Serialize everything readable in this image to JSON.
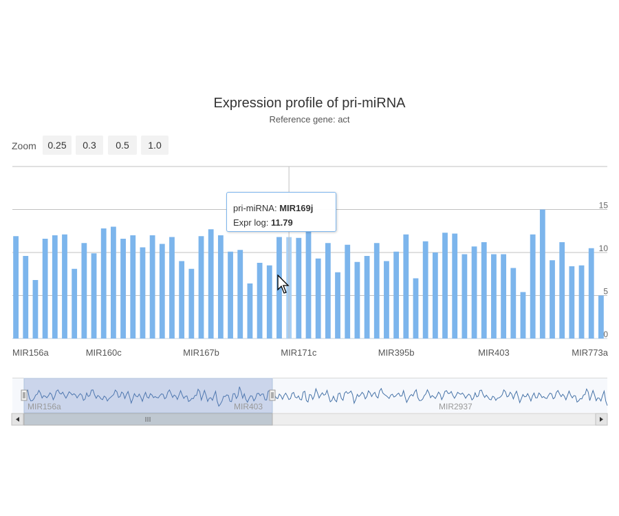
{
  "title": "Expression profile of pri-miRNA",
  "subtitle": "Reference gene: act",
  "zoom": {
    "label": "Zoom",
    "buttons": [
      "0.25",
      "0.3",
      "0.5",
      "1.0"
    ]
  },
  "tooltip": {
    "name_label": "pri-miRNA:",
    "name_value": "MIR169j",
    "value_label": "Expr log:",
    "value_value": "11.79"
  },
  "navigator": {
    "labels": [
      "MIR156a",
      "MIR403",
      "MIR2937"
    ]
  },
  "colors": {
    "bar": "#7cb5ec",
    "bar_hover": "#a8d0f5",
    "navigator_mask": "rgba(102,133,194,0.3)",
    "navigator_line": "#4572a7"
  },
  "chart_data": {
    "type": "bar",
    "title": "Expression profile of pri-miRNA",
    "subtitle": "Reference gene: act",
    "xlabel": "",
    "ylabel": "",
    "ylim": [
      0,
      20
    ],
    "yticks": [
      0,
      5,
      10,
      15
    ],
    "y_axis_side": "right",
    "x_tick_labels": [
      {
        "index": 0,
        "label": "MIR156a"
      },
      {
        "index": 9,
        "label": "MIR160c"
      },
      {
        "index": 19,
        "label": "MIR167b"
      },
      {
        "index": 29,
        "label": "MIR171c"
      },
      {
        "index": 39,
        "label": "MIR395b"
      },
      {
        "index": 49,
        "label": "MIR403"
      },
      {
        "index": 59,
        "label": "MIR773a"
      }
    ],
    "highlighted_index": 28,
    "values": [
      11.9,
      9.6,
      6.8,
      11.6,
      12.0,
      12.1,
      8.1,
      11.1,
      9.9,
      12.8,
      13.0,
      11.6,
      12.0,
      10.6,
      12.0,
      11.0,
      11.8,
      9.0,
      8.1,
      11.9,
      12.7,
      12.0,
      10.1,
      10.3,
      6.4,
      8.8,
      8.5,
      11.8,
      11.79,
      11.7,
      12.5,
      9.3,
      11.1,
      7.7,
      10.9,
      8.9,
      9.6,
      11.1,
      9.0,
      10.1,
      12.1,
      7.0,
      11.3,
      10.0,
      12.3,
      12.2,
      9.8,
      10.7,
      11.2,
      9.8,
      9.8,
      8.2,
      5.4,
      12.1,
      15.0,
      9.1,
      11.2,
      8.4,
      8.5,
      10.5,
      5.0
    ],
    "grid": true,
    "legend": "none"
  }
}
